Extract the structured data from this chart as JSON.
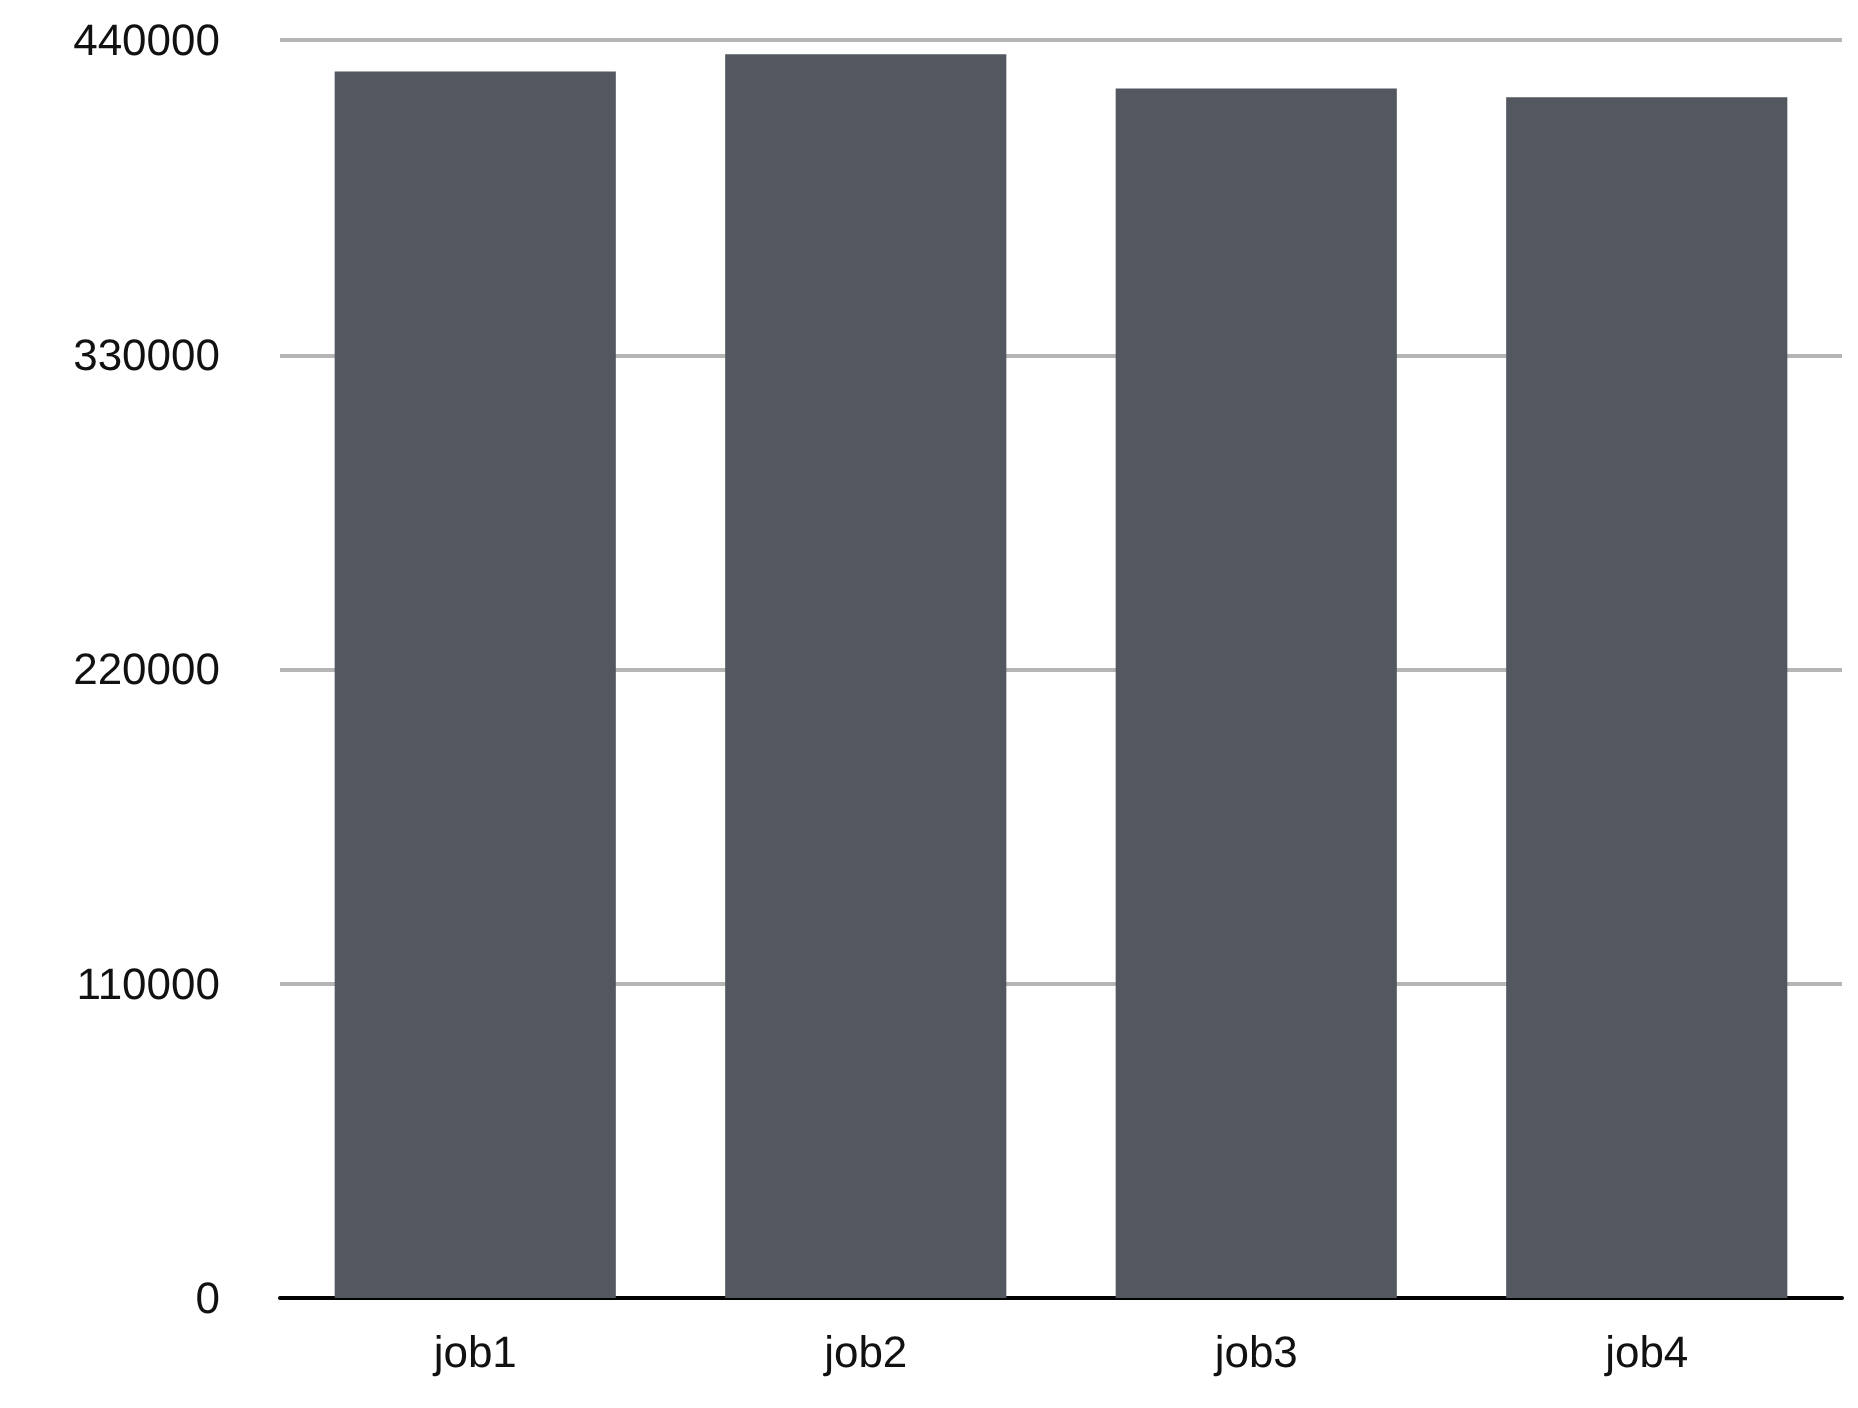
{
  "chart_data": {
    "type": "bar",
    "categories": [
      "job1",
      "job2",
      "job3",
      "job4"
    ],
    "values": [
      429000,
      435000,
      423000,
      420000
    ],
    "color": "#535760",
    "ylim": [
      0,
      440000
    ],
    "yticks": [
      0,
      110000,
      220000,
      330000,
      440000
    ],
    "grid": "y"
  }
}
